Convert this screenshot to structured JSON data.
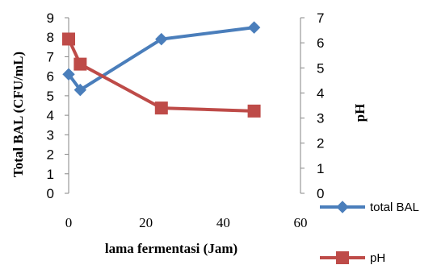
{
  "chart_data": {
    "type": "line",
    "xlabel": "lama fermentasi (Jam)",
    "ylabel_left": "Total BAL (CFU/mL)",
    "ylabel_right": "pH",
    "xlim": [
      0,
      60
    ],
    "xticks": [
      "0",
      "20",
      "40",
      "60"
    ],
    "ylim_left": [
      0,
      9
    ],
    "yticks_left": [
      "0",
      "1",
      "2",
      "3",
      "4",
      "5",
      "6",
      "7",
      "8",
      "9"
    ],
    "ylim_right": [
      0,
      7
    ],
    "yticks_right": [
      "0",
      "1",
      "2",
      "3",
      "4",
      "5",
      "6",
      "7"
    ],
    "grid": false,
    "legend_position": "bottom-right",
    "series": [
      {
        "name": "total BAL",
        "axis": "left",
        "color": "#4a7ebb",
        "marker": "diamond",
        "x": [
          0,
          3,
          24,
          48
        ],
        "y": [
          6.1,
          5.3,
          7.9,
          8.5
        ]
      },
      {
        "name": "pH",
        "axis": "right",
        "color": "#be4b48",
        "marker": "square",
        "x": [
          0,
          3,
          24,
          48
        ],
        "y": [
          6.15,
          5.15,
          3.4,
          3.28
        ]
      }
    ]
  }
}
